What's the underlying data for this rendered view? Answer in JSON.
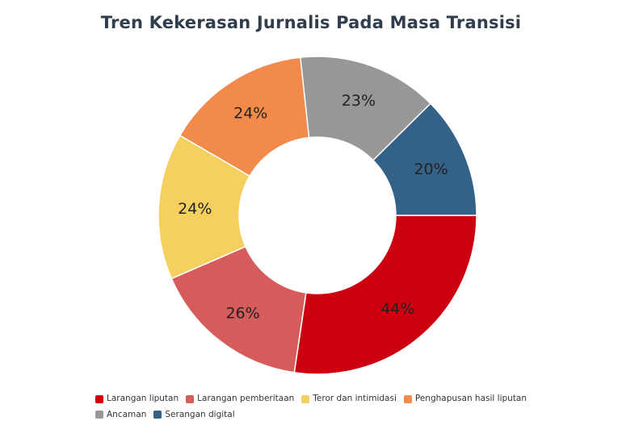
{
  "chart_data": {
    "type": "pie",
    "title": "Tren Kekerasan Jurnalis Pada Masa Transisi",
    "donut": true,
    "legend_position": "bottom-left",
    "slices": [
      {
        "label": "Larangan liputan",
        "value": 44,
        "display": "44%",
        "color": "#cc0011"
      },
      {
        "label": "Larangan pemberitaan",
        "value": 26,
        "display": "26%",
        "color": "#d65c5c"
      },
      {
        "label": "Teror dan intimidasi",
        "value": 24,
        "display": "24%",
        "color": "#f5d060"
      },
      {
        "label": "Penghapusan hasil liputan",
        "value": 24,
        "display": "24%",
        "color": "#f28a4c"
      },
      {
        "label": "Ancaman",
        "value": 23,
        "display": "23%",
        "color": "#979797"
      },
      {
        "label": "Serangan digital",
        "value": 20,
        "display": "20%",
        "color": "#336188"
      }
    ]
  }
}
